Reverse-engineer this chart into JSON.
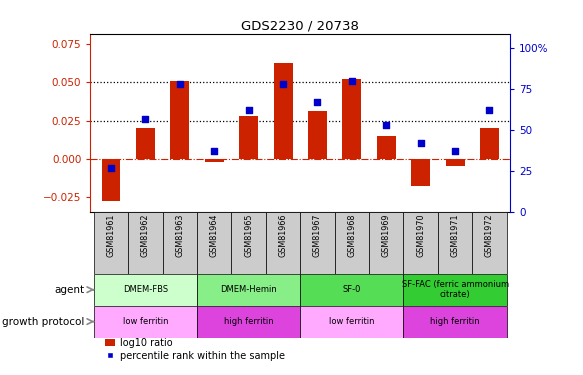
{
  "title": "GDS2230 / 20738",
  "samples": [
    "GSM81961",
    "GSM81962",
    "GSM81963",
    "GSM81964",
    "GSM81965",
    "GSM81966",
    "GSM81967",
    "GSM81968",
    "GSM81969",
    "GSM81970",
    "GSM81971",
    "GSM81972"
  ],
  "log10_ratio": [
    -0.028,
    0.02,
    0.051,
    -0.002,
    0.028,
    0.063,
    0.031,
    0.052,
    0.015,
    -0.018,
    -0.005,
    0.02
  ],
  "percentile_rank": [
    27,
    57,
    78,
    37,
    62,
    78,
    67,
    80,
    53,
    42,
    37,
    62
  ],
  "bar_color": "#cc2200",
  "dot_color": "#0000cc",
  "ylim_left": [
    -0.035,
    0.082
  ],
  "ylim_right": [
    0,
    108.8
  ],
  "yticks_left": [
    -0.025,
    0,
    0.025,
    0.05,
    0.075
  ],
  "yticks_right": [
    0,
    25,
    50,
    75,
    100
  ],
  "hlines": [
    0.025,
    0.05
  ],
  "hline_zero_color": "#cc2200",
  "agent_groups": [
    {
      "label": "DMEM-FBS",
      "start": 0,
      "end": 3,
      "color": "#ccffcc"
    },
    {
      "label": "DMEM-Hemin",
      "start": 3,
      "end": 6,
      "color": "#88ee88"
    },
    {
      "label": "SF-0",
      "start": 6,
      "end": 9,
      "color": "#55dd55"
    },
    {
      "label": "SF-FAC (ferric ammonium\ncitrate)",
      "start": 9,
      "end": 12,
      "color": "#33cc33"
    }
  ],
  "growth_groups": [
    {
      "label": "low ferritin",
      "start": 0,
      "end": 3,
      "color": "#ffaaff"
    },
    {
      "label": "high ferritin",
      "start": 3,
      "end": 6,
      "color": "#dd44dd"
    },
    {
      "label": "low ferritin",
      "start": 6,
      "end": 9,
      "color": "#ffaaff"
    },
    {
      "label": "high ferritin",
      "start": 9,
      "end": 12,
      "color": "#dd44dd"
    }
  ],
  "agent_label": "agent",
  "growth_label": "growth protocol",
  "legend_bar": "log10 ratio",
  "legend_dot": "percentile rank within the sample",
  "background_color": "#ffffff",
  "tick_label_color_left": "#cc2200",
  "tick_label_color_right": "#0000cc",
  "sample_box_color": "#cccccc",
  "arrow_color": "#888888"
}
